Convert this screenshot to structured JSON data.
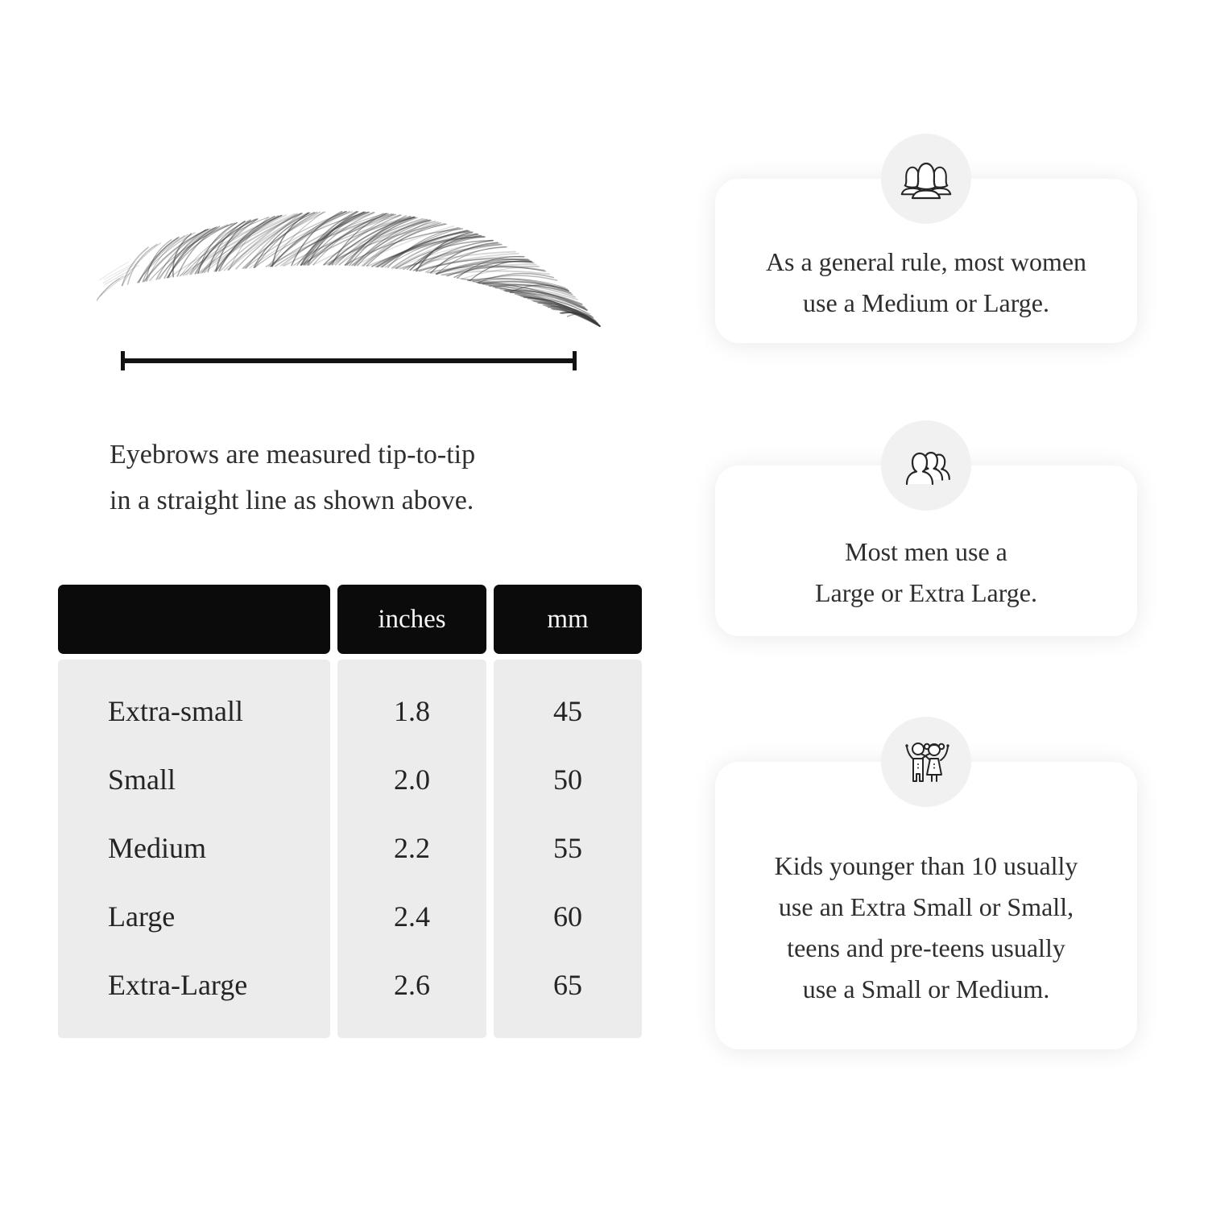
{
  "measurement_section": {
    "caption_line1": "Eyebrows are measured tip-to-tip",
    "caption_line2": "in a straight line as shown above."
  },
  "size_table": {
    "header": {
      "col1": "",
      "col2": "inches",
      "col3": "mm"
    },
    "rows": [
      {
        "label": "Extra-small",
        "inches": "1.8",
        "mm": "45"
      },
      {
        "label": "Small",
        "inches": "2.0",
        "mm": "50"
      },
      {
        "label": "Medium",
        "inches": "2.2",
        "mm": "55"
      },
      {
        "label": "Large",
        "inches": "2.4",
        "mm": "60"
      },
      {
        "label": "Extra-Large",
        "inches": "2.6",
        "mm": "65"
      }
    ]
  },
  "info_cards": [
    {
      "icon": "women-group-icon",
      "text": "As a general rule, most women use a Medium or Large."
    },
    {
      "icon": "men-group-icon",
      "text": "Most men use a Large or Extra Large."
    },
    {
      "icon": "kids-icon",
      "text": "Kids younger than 10 usually use an Extra Small or Small, teens and pre-teens usually use a Small or Medium."
    }
  ],
  "colors": {
    "background": "#ffffff",
    "table_header_bg": "#0b0b0b",
    "table_header_text": "#f7f7f7",
    "table_body_bg": "#ececec",
    "icon_circle_bg": "#f1f1f1",
    "body_text": "#2e2e2e",
    "line_color": "#121212"
  }
}
